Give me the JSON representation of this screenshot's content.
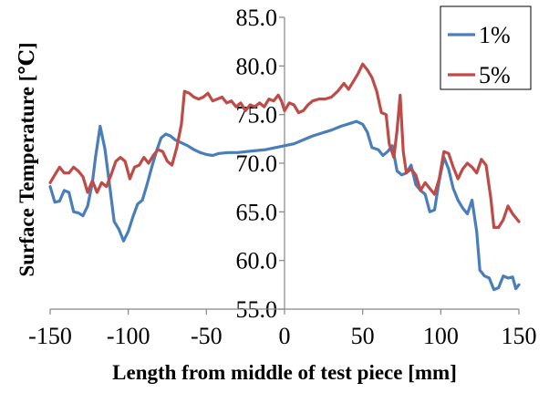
{
  "chart_data": {
    "type": "line",
    "xlabel": "Length from middle of test piece [mm]",
    "ylabel": "Surface Temperature [℃]",
    "xlim": [
      -150,
      150
    ],
    "ylim": [
      55,
      85
    ],
    "x_ticks": [
      -150,
      -100,
      -50,
      0,
      50,
      100,
      150
    ],
    "y_ticks": [
      55,
      60,
      65,
      70,
      75,
      80,
      85
    ],
    "x_tick_labels": [
      "-150",
      "-100",
      "-50",
      "0",
      "50",
      "100",
      "150"
    ],
    "y_tick_labels": [
      "55.0",
      "60.0",
      "65.0",
      "70.0",
      "75.0",
      "80.0",
      "85.0"
    ],
    "grid": false,
    "legend_position": "top-right",
    "series": [
      {
        "name": "1%",
        "color": "#4a7ebb",
        "points": [
          [
            -150,
            67.6
          ],
          [
            -147,
            66.0
          ],
          [
            -144,
            66.1
          ],
          [
            -141,
            67.2
          ],
          [
            -138,
            67.0
          ],
          [
            -135,
            65.0
          ],
          [
            -132,
            64.9
          ],
          [
            -129,
            64.6
          ],
          [
            -126,
            65.6
          ],
          [
            -123,
            68.0
          ],
          [
            -121,
            70.6
          ],
          [
            -118,
            73.8
          ],
          [
            -115,
            71.5
          ],
          [
            -112,
            67.8
          ],
          [
            -109,
            64.0
          ],
          [
            -106,
            63.2
          ],
          [
            -103,
            62.0
          ],
          [
            -100,
            63.0
          ],
          [
            -97,
            64.5
          ],
          [
            -94,
            65.8
          ],
          [
            -91,
            66.2
          ],
          [
            -88,
            67.8
          ],
          [
            -85,
            69.6
          ],
          [
            -82,
            71.2
          ],
          [
            -79,
            72.6
          ],
          [
            -76,
            73.0
          ],
          [
            -73,
            72.8
          ],
          [
            -70,
            72.4
          ],
          [
            -66,
            72.1
          ],
          [
            -62,
            71.8
          ],
          [
            -58,
            71.4
          ],
          [
            -54,
            71.1
          ],
          [
            -50,
            70.9
          ],
          [
            -46,
            70.8
          ],
          [
            -42,
            71.0
          ],
          [
            -36,
            71.1
          ],
          [
            -30,
            71.1
          ],
          [
            -24,
            71.2
          ],
          [
            -18,
            71.3
          ],
          [
            -12,
            71.4
          ],
          [
            -6,
            71.6
          ],
          [
            0,
            71.8
          ],
          [
            6,
            72.0
          ],
          [
            12,
            72.4
          ],
          [
            18,
            72.8
          ],
          [
            24,
            73.1
          ],
          [
            30,
            73.4
          ],
          [
            36,
            73.8
          ],
          [
            42,
            74.1
          ],
          [
            46,
            74.3
          ],
          [
            50,
            74.0
          ],
          [
            53,
            73.2
          ],
          [
            56,
            71.6
          ],
          [
            60,
            71.4
          ],
          [
            63,
            70.8
          ],
          [
            66,
            71.2
          ],
          [
            69,
            71.8
          ],
          [
            72,
            69.2
          ],
          [
            75,
            68.8
          ],
          [
            78,
            69.0
          ],
          [
            81,
            69.8
          ],
          [
            84,
            67.8
          ],
          [
            87,
            67.2
          ],
          [
            90,
            66.8
          ],
          [
            93,
            65.0
          ],
          [
            96,
            65.2
          ],
          [
            99,
            68.2
          ],
          [
            102,
            70.6
          ],
          [
            105,
            69.4
          ],
          [
            108,
            67.4
          ],
          [
            111,
            66.2
          ],
          [
            114,
            65.4
          ],
          [
            117,
            64.8
          ],
          [
            120,
            66.2
          ],
          [
            123,
            63.0
          ],
          [
            125,
            59.0
          ],
          [
            128,
            58.4
          ],
          [
            131,
            58.2
          ],
          [
            134,
            57.0
          ],
          [
            137,
            57.2
          ],
          [
            140,
            58.4
          ],
          [
            143,
            58.2
          ],
          [
            146,
            58.3
          ],
          [
            148,
            57.1
          ],
          [
            150,
            57.5
          ]
        ]
      },
      {
        "name": "5%",
        "color": "#be4b48",
        "points": [
          [
            -150,
            68.0
          ],
          [
            -147,
            68.8
          ],
          [
            -144,
            69.6
          ],
          [
            -141,
            69.0
          ],
          [
            -138,
            69.0
          ],
          [
            -135,
            69.6
          ],
          [
            -132,
            69.2
          ],
          [
            -129,
            68.6
          ],
          [
            -126,
            67.0
          ],
          [
            -123,
            68.2
          ],
          [
            -120,
            67.0
          ],
          [
            -117,
            68.0
          ],
          [
            -114,
            67.6
          ],
          [
            -111,
            68.8
          ],
          [
            -108,
            70.2
          ],
          [
            -105,
            70.6
          ],
          [
            -102,
            70.2
          ],
          [
            -99,
            68.4
          ],
          [
            -96,
            69.6
          ],
          [
            -93,
            69.8
          ],
          [
            -90,
            70.6
          ],
          [
            -87,
            70.0
          ],
          [
            -84,
            70.8
          ],
          [
            -81,
            71.4
          ],
          [
            -78,
            71.2
          ],
          [
            -75,
            70.2
          ],
          [
            -72,
            69.8
          ],
          [
            -69,
            71.6
          ],
          [
            -66,
            74.0
          ],
          [
            -64,
            77.4
          ],
          [
            -61,
            77.2
          ],
          [
            -58,
            76.8
          ],
          [
            -55,
            76.6
          ],
          [
            -52,
            76.8
          ],
          [
            -49,
            77.2
          ],
          [
            -46,
            76.4
          ],
          [
            -43,
            76.6
          ],
          [
            -40,
            76.8
          ],
          [
            -37,
            76.2
          ],
          [
            -34,
            76.4
          ],
          [
            -31,
            75.8
          ],
          [
            -28,
            76.2
          ],
          [
            -25,
            75.4
          ],
          [
            -22,
            76.0
          ],
          [
            -19,
            75.8
          ],
          [
            -16,
            76.2
          ],
          [
            -13,
            75.8
          ],
          [
            -10,
            76.6
          ],
          [
            -7,
            76.4
          ],
          [
            -4,
            77.0
          ],
          [
            -2,
            76.4
          ],
          [
            0,
            75.4
          ],
          [
            3,
            76.2
          ],
          [
            6,
            76.0
          ],
          [
            9,
            75.2
          ],
          [
            12,
            75.4
          ],
          [
            15,
            76.0
          ],
          [
            18,
            76.4
          ],
          [
            22,
            76.6
          ],
          [
            26,
            76.6
          ],
          [
            30,
            76.8
          ],
          [
            34,
            77.4
          ],
          [
            38,
            78.2
          ],
          [
            41,
            77.6
          ],
          [
            44,
            78.4
          ],
          [
            47,
            79.2
          ],
          [
            50,
            80.2
          ],
          [
            53,
            79.6
          ],
          [
            56,
            78.8
          ],
          [
            59,
            77.4
          ],
          [
            62,
            75.2
          ],
          [
            65,
            75.0
          ],
          [
            67,
            72.0
          ],
          [
            70,
            70.6
          ],
          [
            72,
            73.4
          ],
          [
            74,
            77.0
          ],
          [
            76,
            71.2
          ],
          [
            78,
            69.0
          ],
          [
            81,
            69.4
          ],
          [
            84,
            68.8
          ],
          [
            87,
            67.2
          ],
          [
            90,
            68.0
          ],
          [
            93,
            67.4
          ],
          [
            96,
            66.8
          ],
          [
            99,
            68.4
          ],
          [
            102,
            71.2
          ],
          [
            105,
            71.0
          ],
          [
            108,
            69.6
          ],
          [
            111,
            68.4
          ],
          [
            114,
            69.4
          ],
          [
            117,
            70.0
          ],
          [
            120,
            69.6
          ],
          [
            123,
            69.0
          ],
          [
            126,
            70.4
          ],
          [
            129,
            69.8
          ],
          [
            132,
            66.4
          ],
          [
            134,
            63.4
          ],
          [
            137,
            63.4
          ],
          [
            140,
            64.2
          ],
          [
            143,
            65.6
          ],
          [
            146,
            64.8
          ],
          [
            150,
            64.0
          ]
        ]
      }
    ]
  }
}
